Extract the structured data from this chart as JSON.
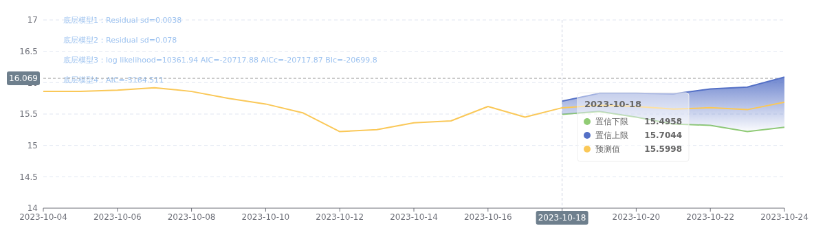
{
  "chart_data": {
    "type": "line",
    "x": [
      "2023-10-04",
      "2023-10-05",
      "2023-10-06",
      "2023-10-07",
      "2023-10-08",
      "2023-10-09",
      "2023-10-10",
      "2023-10-11",
      "2023-10-12",
      "2023-10-13",
      "2023-10-14",
      "2023-10-15",
      "2023-10-16",
      "2023-10-17",
      "2023-10-18",
      "2023-10-19",
      "2023-10-20",
      "2023-10-21",
      "2023-10-22",
      "2023-10-23",
      "2023-10-24"
    ],
    "series": [
      {
        "name": "置信下限",
        "color": "#91cc75",
        "values": [
          null,
          null,
          null,
          null,
          null,
          null,
          null,
          null,
          null,
          null,
          null,
          null,
          null,
          null,
          15.4958,
          15.54,
          15.45,
          15.34,
          15.32,
          15.22,
          15.29
        ]
      },
      {
        "name": "置信上限",
        "color": "#5470c6",
        "type": "area",
        "values": [
          null,
          null,
          null,
          null,
          null,
          null,
          null,
          null,
          null,
          null,
          null,
          null,
          null,
          null,
          15.7044,
          15.83,
          15.83,
          15.82,
          15.9,
          15.93,
          16.09
        ]
      },
      {
        "name": "预测值",
        "color": "#fac858",
        "values": [
          15.86,
          15.86,
          15.88,
          15.92,
          15.86,
          15.75,
          15.66,
          15.52,
          15.22,
          15.25,
          15.36,
          15.39,
          15.62,
          15.45,
          15.5998,
          15.64,
          15.62,
          15.58,
          15.6,
          15.57,
          15.69
        ]
      }
    ],
    "xlim": [
      "2023-10-04",
      "2023-10-24"
    ],
    "xticks": [
      "2023-10-04",
      "2023-10-06",
      "2023-10-08",
      "2023-10-10",
      "2023-10-12",
      "2023-10-14",
      "2023-10-16",
      {
        "value": "2023-10-18",
        "label": null
      },
      "2023-10-20",
      "2023-10-22",
      "2023-10-24"
    ],
    "ylim": [
      14,
      17
    ],
    "yticks": [
      14,
      14.5,
      15,
      15.5,
      16,
      16.5,
      17
    ],
    "grid": "y",
    "marker": "none",
    "legend": "right",
    "ref_lines": [
      {
        "axis": "x",
        "value": "2023-10-18",
        "label": "2023-10-18"
      },
      {
        "axis": "y",
        "value": 16.069,
        "label": "16.069"
      }
    ],
    "annotations": [
      "底层模型1：Residual sd=0.0038",
      "底层模型2：Residual sd=0.078",
      "底层模型3：log likelihood=10361.94 AIC=-20717.88 AICc=-20717.87 BIc=-20699.8",
      "底层模型4：AIC=-5164.511",
      "15.4958",
      "15.7044",
      "15.5998"
    ]
  }
}
